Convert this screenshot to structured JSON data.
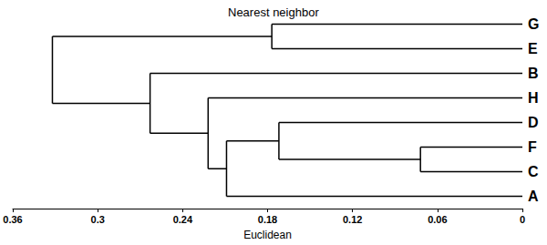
{
  "chart_data": {
    "type": "dendrogram",
    "title": "Nearest neighbor",
    "x_label": "Euclidean",
    "xlim": [
      0.36,
      0
    ],
    "xticks": [
      0.36,
      0.3,
      0.24,
      0.18,
      0.12,
      0.06,
      0
    ],
    "color": "#000000",
    "tree": {
      "height": 0.332,
      "children": [
        {
          "height": 0.177,
          "children": [
            "G",
            "E"
          ]
        },
        {
          "height": 0.263,
          "children": [
            "B",
            {
              "height": 0.222,
              "children": [
                "H",
                {
                  "height": 0.209,
                  "children": [
                    {
                      "height": 0.172,
                      "children": [
                        "D",
                        {
                          "height": 0.072,
                          "children": [
                            "F",
                            "C"
                          ]
                        }
                      ]
                    },
                    "A"
                  ]
                }
              ]
            }
          ]
        }
      ]
    }
  }
}
